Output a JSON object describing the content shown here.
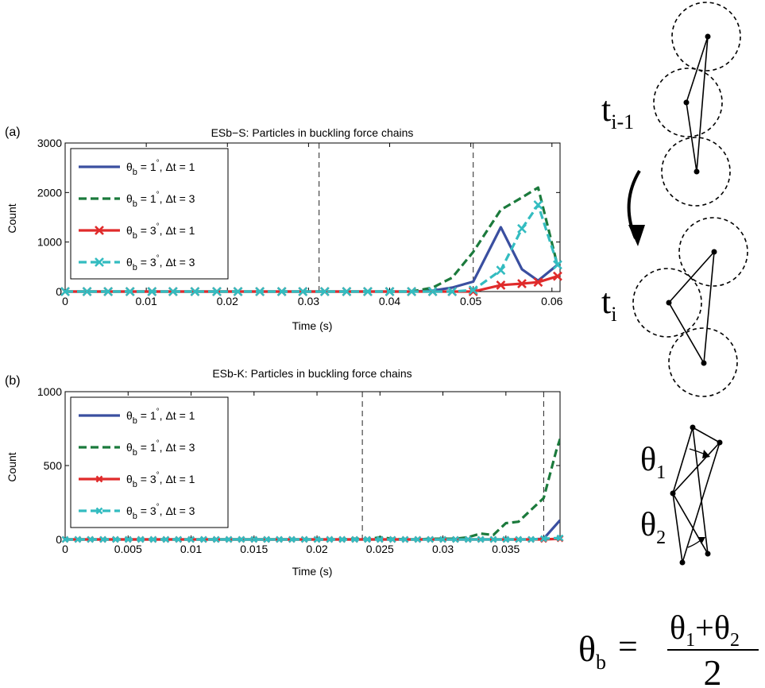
{
  "figure": {
    "panel_labels": [
      "(a)",
      "(b)"
    ],
    "schematic": {
      "label_prev": "t",
      "label_prev_sub": "i-1",
      "label_curr": "t",
      "label_curr_sub": "i",
      "angle_1": "θ",
      "angle_1_sub": "1",
      "angle_2": "θ",
      "angle_2_sub": "2",
      "formula_lhs": "θ",
      "formula_lhs_sub": "b",
      "formula_eq": "=",
      "formula_num": "θ",
      "formula_num_sub1": "1",
      "formula_plus": "+",
      "formula_num_sub2": "2",
      "formula_den": "2"
    }
  },
  "chart_data": [
    {
      "type": "line",
      "title": "ESb−S: Particles in buckling force chains",
      "xlabel": "Time (s)",
      "ylabel": "Count",
      "xlim": [
        0,
        0.061
      ],
      "ylim": [
        0,
        3000
      ],
      "xticks": [
        0,
        0.01,
        0.02,
        0.03,
        0.04,
        0.05,
        0.06
      ],
      "xtick_labels": [
        "0",
        "0.01",
        "0.02",
        "0.03",
        "0.04",
        "0.05",
        "0.06"
      ],
      "yticks": [
        0,
        1000,
        2000,
        3000
      ],
      "ytick_labels": [
        "0",
        "1000",
        "2000",
        "3000"
      ],
      "vlines": [
        0.0313,
        0.0503
      ],
      "legend_position": "top-left",
      "grid": false,
      "series": [
        {
          "name_main": "θ",
          "name_sub": "b",
          "name_rest": " = 1",
          "name_deg": "°",
          "name_tail": ", Δt = 1",
          "color": "#3a4fa0",
          "dash": "solid",
          "marker": "none",
          "x": [
            0,
            0.0027,
            0.0053,
            0.008,
            0.0107,
            0.0133,
            0.016,
            0.0187,
            0.0213,
            0.024,
            0.0267,
            0.0293,
            0.032,
            0.0347,
            0.0373,
            0.04,
            0.0427,
            0.0453,
            0.0477,
            0.0503,
            0.0537,
            0.0563,
            0.0583,
            0.0607
          ],
          "y": [
            0,
            0,
            0,
            0,
            0,
            0,
            0,
            0,
            0,
            0,
            0,
            0,
            0,
            0,
            0,
            0,
            0,
            20,
            80,
            200,
            1300,
            450,
            220,
            540
          ]
        },
        {
          "name_main": "θ",
          "name_sub": "b",
          "name_rest": " = 1",
          "name_deg": "°",
          "name_tail": ", Δt = 3",
          "color": "#1b7a3c",
          "dash": "dashed",
          "marker": "none",
          "x": [
            0,
            0.0027,
            0.0053,
            0.008,
            0.0107,
            0.0133,
            0.016,
            0.0187,
            0.0213,
            0.024,
            0.0267,
            0.0293,
            0.032,
            0.0347,
            0.0373,
            0.04,
            0.0427,
            0.0453,
            0.0477,
            0.0503,
            0.0537,
            0.0563,
            0.0583,
            0.0607
          ],
          "y": [
            0,
            0,
            0,
            0,
            0,
            0,
            0,
            0,
            0,
            0,
            0,
            0,
            0,
            0,
            0,
            0,
            0,
            80,
            280,
            800,
            1650,
            1900,
            2100,
            520
          ]
        },
        {
          "name_main": "θ",
          "name_sub": "b",
          "name_rest": " = 3",
          "name_deg": "°",
          "name_tail": ", Δt = 1",
          "color": "#e02b2b",
          "dash": "solid",
          "marker": "x",
          "x": [
            0,
            0.0027,
            0.0053,
            0.008,
            0.0107,
            0.0133,
            0.016,
            0.0187,
            0.0213,
            0.024,
            0.0267,
            0.0293,
            0.032,
            0.0347,
            0.0373,
            0.04,
            0.0427,
            0.0453,
            0.0477,
            0.0503,
            0.0537,
            0.0563,
            0.0583,
            0.0607
          ],
          "y": [
            0,
            0,
            0,
            0,
            0,
            0,
            0,
            0,
            0,
            0,
            0,
            0,
            0,
            0,
            0,
            0,
            0,
            0,
            0,
            0,
            130,
            160,
            190,
            310
          ]
        },
        {
          "name_main": "θ",
          "name_sub": "b",
          "name_rest": " = 3",
          "name_deg": "°",
          "name_tail": ", Δt = 3",
          "color": "#33bcc0",
          "dash": "dashed",
          "marker": "x",
          "x": [
            0,
            0.0027,
            0.0053,
            0.008,
            0.0107,
            0.0133,
            0.016,
            0.0187,
            0.0213,
            0.024,
            0.0267,
            0.0293,
            0.032,
            0.0347,
            0.0373,
            0.04,
            0.0427,
            0.0453,
            0.0477,
            0.0503,
            0.0537,
            0.0563,
            0.0583,
            0.0607
          ],
          "y": [
            0,
            0,
            0,
            0,
            0,
            0,
            0,
            0,
            0,
            0,
            0,
            0,
            0,
            0,
            0,
            0,
            0,
            0,
            0,
            30,
            430,
            1270,
            1750,
            540
          ]
        }
      ]
    },
    {
      "type": "line",
      "title": "ESb-K: Particles in buckling force chains",
      "xlabel": "Time (s)",
      "ylabel": "Count",
      "xlim": [
        0,
        0.0393
      ],
      "ylim": [
        0,
        1000
      ],
      "xticks": [
        0,
        0.005,
        0.01,
        0.015,
        0.02,
        0.025,
        0.03,
        0.035
      ],
      "xtick_labels": [
        "0",
        "0.005",
        "0.01",
        "0.015",
        "0.02",
        "0.025",
        "0.03",
        "0.035"
      ],
      "yticks": [
        0,
        500,
        1000
      ],
      "ytick_labels": [
        "0",
        "500",
        "1000"
      ],
      "vlines": [
        0.0236,
        0.038
      ],
      "legend_position": "top-left",
      "grid": false,
      "series": [
        {
          "name_main": "θ",
          "name_sub": "b",
          "name_rest": " = 1",
          "name_deg": "°",
          "name_tail": ", Δt = 1",
          "color": "#3a4fa0",
          "dash": "solid",
          "marker": "none",
          "x": [
            0,
            0.001,
            0.002,
            0.003,
            0.004,
            0.005,
            0.006,
            0.007,
            0.008,
            0.009,
            0.01,
            0.011,
            0.012,
            0.013,
            0.014,
            0.015,
            0.016,
            0.017,
            0.018,
            0.019,
            0.02,
            0.021,
            0.022,
            0.023,
            0.024,
            0.025,
            0.026,
            0.027,
            0.028,
            0.029,
            0.03,
            0.031,
            0.032,
            0.033,
            0.034,
            0.035,
            0.036,
            0.037,
            0.038,
            0.0393
          ],
          "y": [
            0,
            0,
            0,
            0,
            0,
            0,
            0,
            0,
            0,
            0,
            0,
            0,
            0,
            0,
            0,
            0,
            0,
            0,
            0,
            0,
            0,
            0,
            0,
            0,
            0,
            0,
            0,
            0,
            0,
            0,
            0,
            0,
            0,
            0,
            0,
            0,
            0,
            0,
            5,
            130
          ]
        },
        {
          "name_main": "θ",
          "name_sub": "b",
          "name_rest": " = 1",
          "name_deg": "°",
          "name_tail": ", Δt = 3",
          "color": "#1b7a3c",
          "dash": "dashed",
          "marker": "none",
          "x": [
            0,
            0.002,
            0.004,
            0.006,
            0.008,
            0.01,
            0.012,
            0.014,
            0.016,
            0.018,
            0.02,
            0.022,
            0.023,
            0.024,
            0.025,
            0.026,
            0.027,
            0.028,
            0.029,
            0.03,
            0.031,
            0.032,
            0.033,
            0.034,
            0.035,
            0.036,
            0.037,
            0.038,
            0.039,
            0.0393
          ],
          "y": [
            0,
            0,
            0,
            0,
            0,
            0,
            0,
            0,
            0,
            0,
            0,
            0,
            5,
            0,
            15,
            5,
            0,
            0,
            5,
            5,
            5,
            15,
            40,
            30,
            110,
            120,
            200,
            280,
            600,
            680
          ]
        },
        {
          "name_main": "θ",
          "name_sub": "b",
          "name_rest": " = 3",
          "name_deg": "°",
          "name_tail": ", Δt = 1",
          "color": "#e02b2b",
          "dash": "solid",
          "marker": "x",
          "x": [
            0,
            0.001,
            0.002,
            0.003,
            0.004,
            0.005,
            0.006,
            0.007,
            0.008,
            0.009,
            0.01,
            0.011,
            0.012,
            0.013,
            0.014,
            0.015,
            0.016,
            0.017,
            0.018,
            0.019,
            0.02,
            0.021,
            0.022,
            0.023,
            0.024,
            0.025,
            0.026,
            0.027,
            0.028,
            0.029,
            0.03,
            0.031,
            0.032,
            0.033,
            0.034,
            0.035,
            0.036,
            0.037,
            0.038,
            0.0393
          ],
          "y": [
            0,
            0,
            0,
            0,
            0,
            0,
            0,
            0,
            0,
            0,
            0,
            0,
            0,
            0,
            0,
            0,
            0,
            0,
            0,
            0,
            0,
            0,
            0,
            0,
            0,
            0,
            0,
            0,
            0,
            0,
            0,
            0,
            0,
            0,
            0,
            0,
            0,
            0,
            0,
            5
          ]
        },
        {
          "name_main": "θ",
          "name_sub": "b",
          "name_rest": " = 3",
          "name_deg": "°",
          "name_tail": ", Δt = 3",
          "color": "#33bcc0",
          "dash": "dashed",
          "marker": "x",
          "x": [
            0,
            0.001,
            0.002,
            0.003,
            0.004,
            0.005,
            0.006,
            0.007,
            0.008,
            0.009,
            0.01,
            0.011,
            0.012,
            0.013,
            0.014,
            0.015,
            0.016,
            0.017,
            0.018,
            0.019,
            0.02,
            0.021,
            0.022,
            0.023,
            0.024,
            0.025,
            0.026,
            0.027,
            0.028,
            0.029,
            0.03,
            0.031,
            0.032,
            0.033,
            0.034,
            0.035,
            0.036,
            0.037,
            0.038,
            0.0393
          ],
          "y": [
            0,
            0,
            0,
            0,
            0,
            0,
            0,
            0,
            0,
            0,
            0,
            0,
            0,
            0,
            0,
            0,
            0,
            0,
            0,
            0,
            0,
            0,
            0,
            0,
            0,
            0,
            0,
            0,
            0,
            0,
            0,
            0,
            0,
            0,
            0,
            0,
            0,
            0,
            5,
            10
          ]
        }
      ]
    }
  ]
}
